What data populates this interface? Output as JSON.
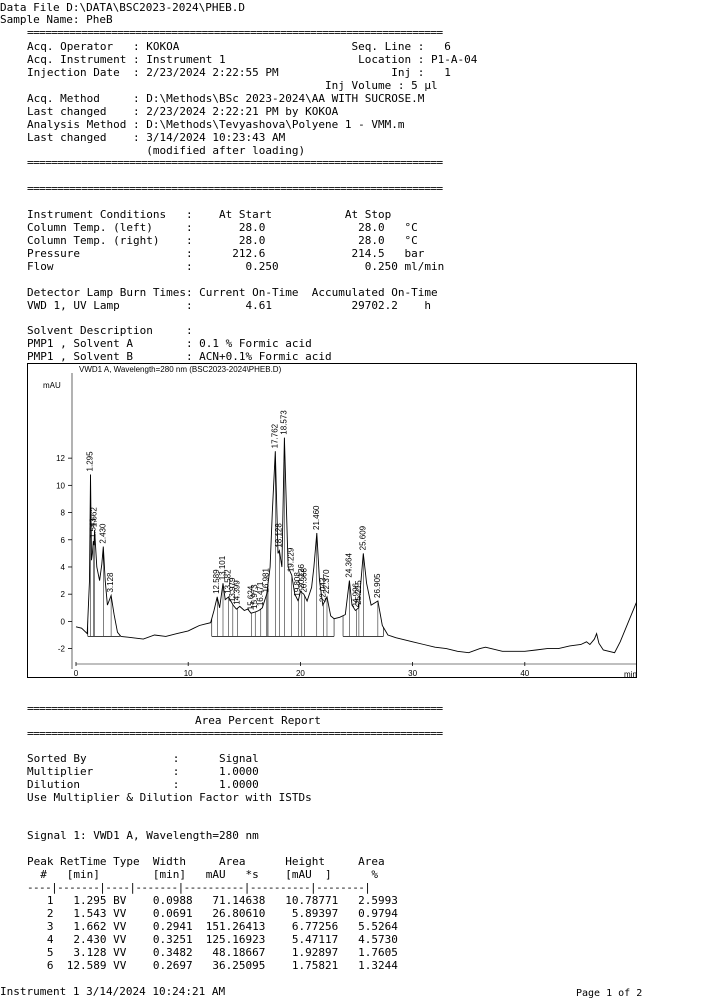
{
  "header": {
    "data_file": "Data File D:\\DATA\\BSC2023-2024\\PHEB.D",
    "sample_name": "Sample Name: PheB"
  },
  "separator": "=====================================================================",
  "acq": [
    "Acq. Operator   : KOKOA                          Seq. Line :   6",
    "Acq. Instrument : Instrument 1                    Location : P1-A-04",
    "Injection Date  : 2/23/2024 2:22:55 PM                 Inj :   1",
    "                                             Inj Volume : 5 µl",
    "Acq. Method     : D:\\Methods\\BSc 2023-2024\\AA WITH SUCROSE.M",
    "Last changed    : 2/23/2024 2:22:21 PM by KOKOA",
    "Analysis Method : D:\\Methods\\Tevyashova\\Polyene 1 - VMM.m",
    "Last changed    : 3/14/2024 10:23:43 AM",
    "                  (modified after loading)"
  ],
  "conditions": [
    "Instrument Conditions   :    At Start           At Stop",
    "Column Temp. (left)     :       28.0              28.0   °C",
    "Column Temp. (right)    :       28.0              28.0   °C",
    "Pressure                :      212.6             214.5   bar",
    "Flow                    :        0.250             0.250 ml/min"
  ],
  "lamp": [
    "Detector Lamp Burn Times: Current On-Time  Accumulated On-Time",
    "VWD 1, UV Lamp          :        4.61            29702.2    h"
  ],
  "solvent": [
    "Solvent Description     :",
    "PMP1 , Solvent A        : 0.1 % Formic acid",
    "PMP1 , Solvent B        : ACN+0.1% Formic acid"
  ],
  "chart_data": {
    "type": "line",
    "title": "VWD1 A, Wavelength=280 nm (BSC2023-2024\\PHEB.D)",
    "ylabel": "mAU",
    "xlabel": "min",
    "xlim": [
      0,
      50
    ],
    "ylim": [
      -3.5,
      18.7
    ],
    "xticks": [
      0,
      10,
      20,
      30,
      40
    ],
    "yticks": [
      -2,
      0,
      2,
      4,
      6,
      8,
      10,
      12
    ],
    "trace": [
      [
        0,
        -0.4
      ],
      [
        0.5,
        -0.5
      ],
      [
        1.0,
        -0.9
      ],
      [
        1.2,
        3.0
      ],
      [
        1.295,
        10.8
      ],
      [
        1.38,
        4.5
      ],
      [
        1.46,
        5.0
      ],
      [
        1.543,
        5.9
      ],
      [
        1.6,
        5.6
      ],
      [
        1.662,
        6.7
      ],
      [
        1.85,
        4.0
      ],
      [
        2.1,
        3.0
      ],
      [
        2.3,
        4.2
      ],
      [
        2.43,
        5.5
      ],
      [
        2.6,
        3.0
      ],
      [
        2.8,
        1.2
      ],
      [
        3.128,
        1.9
      ],
      [
        3.4,
        0.5
      ],
      [
        3.7,
        -0.8
      ],
      [
        4,
        -1.1
      ],
      [
        5,
        -1.2
      ],
      [
        6,
        -1.3
      ],
      [
        7,
        -1.0
      ],
      [
        8,
        -1.1
      ],
      [
        9,
        -0.9
      ],
      [
        10,
        -0.7
      ],
      [
        10.5,
        -0.5
      ],
      [
        11,
        -0.3
      ],
      [
        11.5,
        -0.2
      ],
      [
        12,
        -0.1
      ],
      [
        12.3,
        0.8
      ],
      [
        12.589,
        1.8
      ],
      [
        12.8,
        1.0
      ],
      [
        13.101,
        2.8
      ],
      [
        13.3,
        1.6
      ],
      [
        13.6,
        1.8
      ],
      [
        14.0,
        1.2
      ],
      [
        14.3,
        0.9
      ],
      [
        14.6,
        1.1
      ],
      [
        15.0,
        0.8
      ],
      [
        15.3,
        0.9
      ],
      [
        15.6,
        0.6
      ],
      [
        16.0,
        0.7
      ],
      [
        16.3,
        0.8
      ],
      [
        16.6,
        1.0
      ],
      [
        17.0,
        2.0
      ],
      [
        17.3,
        4.0
      ],
      [
        17.5,
        8.0
      ],
      [
        17.762,
        12.5
      ],
      [
        18.0,
        5.0
      ],
      [
        18.128,
        5.2
      ],
      [
        18.35,
        4.0
      ],
      [
        18.573,
        13.5
      ],
      [
        18.9,
        4.0
      ],
      [
        19.229,
        3.4
      ],
      [
        19.5,
        2.0
      ],
      [
        19.8,
        1.5
      ],
      [
        20.0,
        2.2
      ],
      [
        20.3,
        2.0
      ],
      [
        20.6,
        1.5
      ],
      [
        21.0,
        2.5
      ],
      [
        21.2,
        4.0
      ],
      [
        21.46,
        6.5
      ],
      [
        21.7,
        3.0
      ],
      [
        22.0,
        1.2
      ],
      [
        22.37,
        1.8
      ],
      [
        22.7,
        0.4
      ],
      [
        23.0,
        0.2
      ],
      [
        23.5,
        0.3
      ],
      [
        24.0,
        0.5
      ],
      [
        24.364,
        3.0
      ],
      [
        24.6,
        1.2
      ],
      [
        24.9,
        0.8
      ],
      [
        25.2,
        1.0
      ],
      [
        25.609,
        5.0
      ],
      [
        25.9,
        2.8
      ],
      [
        26.3,
        1.2
      ],
      [
        26.905,
        1.5
      ],
      [
        27.3,
        -0.3
      ],
      [
        27.8,
        -1.0
      ],
      [
        28.5,
        -1.2
      ],
      [
        29,
        -1.3
      ],
      [
        30,
        -1.5
      ],
      [
        31,
        -1.7
      ],
      [
        32,
        -1.9
      ],
      [
        33,
        -2.0
      ],
      [
        34,
        -2.2
      ],
      [
        35,
        -2.3
      ],
      [
        36,
        -2.0
      ],
      [
        36.5,
        -1.9
      ],
      [
        37,
        -2.0
      ],
      [
        38,
        -2.2
      ],
      [
        39,
        -2.2
      ],
      [
        40,
        -2.2
      ],
      [
        41,
        -2.1
      ],
      [
        42,
        -2.0
      ],
      [
        43,
        -2.0
      ],
      [
        44,
        -1.8
      ],
      [
        45,
        -1.7
      ],
      [
        45.5,
        -1.5
      ],
      [
        45.8,
        -1.7
      ],
      [
        46.2,
        -1.3
      ],
      [
        46.4,
        -0.9
      ],
      [
        46.6,
        -1.6
      ],
      [
        47,
        -2.1
      ],
      [
        48,
        -2.3
      ],
      [
        48.5,
        -1.5
      ],
      [
        49,
        -0.5
      ],
      [
        49.5,
        0.5
      ],
      [
        50,
        1.5
      ]
    ],
    "peak_labels": [
      {
        "t": 1.295,
        "y": 10.8,
        "label": "1.295"
      },
      {
        "t": 1.543,
        "y": 5.9,
        "label": "1.543"
      },
      {
        "t": 1.662,
        "y": 6.7,
        "label": "1.662"
      },
      {
        "t": 2.43,
        "y": 5.5,
        "label": "2.430"
      },
      {
        "t": 3.128,
        "y": 1.9,
        "label": "3.128"
      },
      {
        "t": 12.589,
        "y": 1.8,
        "label": "12.589"
      },
      {
        "t": 13.101,
        "y": 2.8,
        "label": "13.101"
      },
      {
        "t": 13.582,
        "y": 1.8,
        "label": "13.582"
      },
      {
        "t": 13.979,
        "y": 1.2,
        "label": "13.979"
      },
      {
        "t": 14.399,
        "y": 1.0,
        "label": "14.399"
      },
      {
        "t": 15.624,
        "y": 0.6,
        "label": "15.624"
      },
      {
        "t": 15.973,
        "y": 0.7,
        "label": "15.973"
      },
      {
        "t": 16.471,
        "y": 0.9,
        "label": "16.471"
      },
      {
        "t": 16.981,
        "y": 1.9,
        "label": "16.981"
      },
      {
        "t": 17.762,
        "y": 12.5,
        "label": "17.762"
      },
      {
        "t": 18.128,
        "y": 5.2,
        "label": "18.128"
      },
      {
        "t": 18.573,
        "y": 13.5,
        "label": "18.573"
      },
      {
        "t": 19.229,
        "y": 3.4,
        "label": "19.229"
      },
      {
        "t": 19.808,
        "y": 1.6,
        "label": "19.808"
      },
      {
        "t": 20.126,
        "y": 2.2,
        "label": "20.126"
      },
      {
        "t": 20.368,
        "y": 1.9,
        "label": "20.368"
      },
      {
        "t": 21.46,
        "y": 6.5,
        "label": "21.460"
      },
      {
        "t": 22.043,
        "y": 1.2,
        "label": "22.043"
      },
      {
        "t": 22.37,
        "y": 1.8,
        "label": "22.370"
      },
      {
        "t": 24.364,
        "y": 3.0,
        "label": "24.364"
      },
      {
        "t": 24.996,
        "y": 0.8,
        "label": "24.996"
      },
      {
        "t": 25.215,
        "y": 1.0,
        "label": "25.215"
      },
      {
        "t": 25.609,
        "y": 5.0,
        "label": "25.609"
      },
      {
        "t": 26.905,
        "y": 1.5,
        "label": "26.905"
      }
    ],
    "baselines": [
      [
        1.05,
        3.9
      ],
      [
        12.1,
        17.1
      ],
      [
        17.1,
        23.0
      ],
      [
        23.8,
        27.4
      ]
    ]
  },
  "report": {
    "title": "Area Percent Report",
    "settings": [
      "Sorted By             :      Signal",
      "Multiplier            :      1.0000",
      "Dilution              :      1.0000",
      "Use Multiplier & Dilution Factor with ISTDs"
    ],
    "signal": "Signal 1: VWD1 A, Wavelength=280 nm",
    "table_header": [
      "Peak RetTime Type  Width     Area      Height     Area",
      "  #   [min]        [min]   mAU   *s    [mAU  ]      %"
    ],
    "table_rule": "----|-------|----|-------|----------|----------|--------|",
    "rows": [
      "   1   1.295 BV    0.0988   71.14638   10.78771   2.5993",
      "   2   1.543 VV    0.0691   26.80610    5.89397   0.9794",
      "   3   1.662 VV    0.2941  151.26413    6.77256   5.5264",
      "   4   2.430 VV    0.3251  125.16923    5.47117   4.5730",
      "   5   3.128 VV    0.3482   48.18667    1.92897   1.7605",
      "   6  12.589 VV    0.2697   36.25095    1.75821   1.3244"
    ]
  },
  "footer": {
    "left": "Instrument 1 3/14/2024 10:24:21 AM",
    "right": "Page 1 of 2"
  }
}
